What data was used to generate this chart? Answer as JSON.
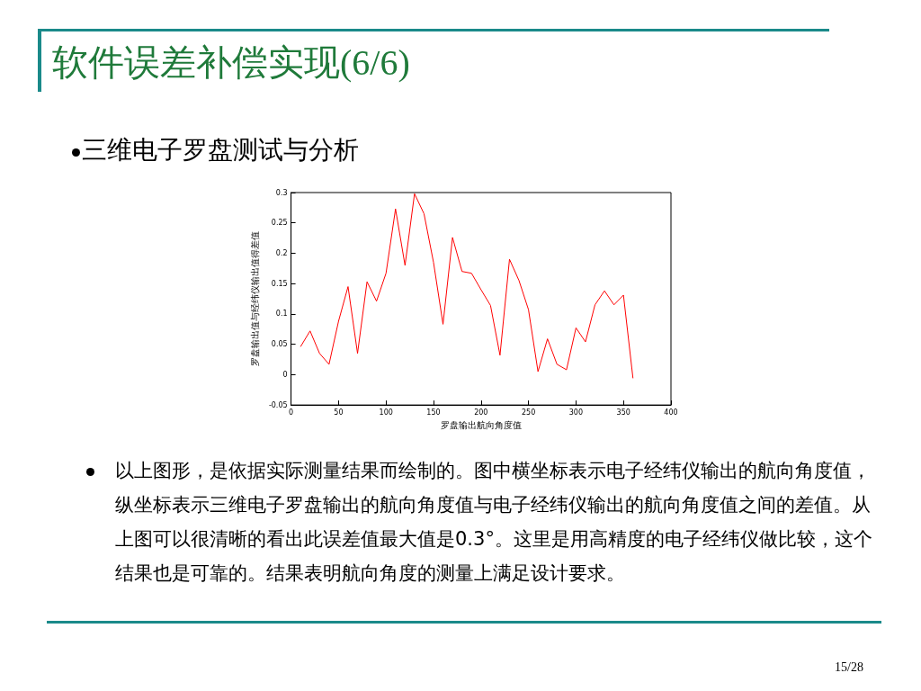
{
  "chart_data": {
    "type": "line",
    "title": "软件误差补偿实现(6/6)",
    "subtitle": "三维电子罗盘测试与分析",
    "xlabel": "罗盘输出航向角度值",
    "ylabel": "罗盘输出值与经纬仪输出值得差值",
    "annotations": [
      "以上图形，是依据实际测量结果而绘制的。图中横坐标表示电子经纬仪输出的航向角度值，纵坐标表示三维电子罗盘输出的航向角度值与电子经纬仪输出的航向角度值之间的差值。从上图可以很清晰的看出此误差值最大值是0.3°。这里是用高精度的电子经纬仪做比较，这个结果也是可靠的。结果表明航向角度的测量上满足设计要求。",
      "15/28"
    ],
    "x": [
      10,
      20,
      30,
      40,
      50,
      60,
      70,
      80,
      90,
      100,
      110,
      120,
      130,
      140,
      150,
      160,
      170,
      180,
      190,
      200,
      210,
      220,
      230,
      240,
      250,
      260,
      270,
      280,
      290,
      300,
      310,
      320,
      330,
      340,
      350,
      360
    ],
    "series": [
      {
        "color": "#ff0000",
        "values": [
          0.046,
          0.072,
          0.035,
          0.017,
          0.088,
          0.145,
          0.035,
          0.153,
          0.121,
          0.167,
          0.273,
          0.18,
          0.298,
          0.265,
          0.185,
          0.083,
          0.226,
          0.17,
          0.167,
          0.14,
          0.114,
          0.032,
          0.19,
          0.155,
          0.107,
          0.005,
          0.059,
          0.017,
          0.008,
          0.077,
          0.054,
          0.115,
          0.138,
          0.115,
          0.131,
          -0.006
        ]
      }
    ],
    "xlim": [
      0,
      400
    ],
    "xticks": [
      0,
      50,
      100,
      150,
      200,
      250,
      300,
      350,
      400
    ],
    "ylim": [
      -0.05,
      0.3
    ],
    "yticks": [
      -0.05,
      0,
      0.05,
      0.1,
      0.15,
      0.2,
      0.25,
      0.3
    ],
    "grid": false,
    "marker": "none"
  }
}
